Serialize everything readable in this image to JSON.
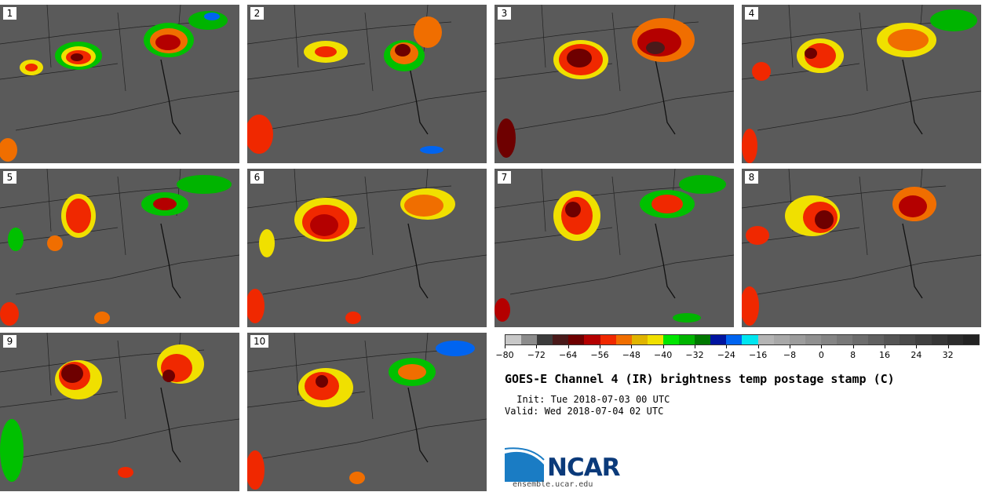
{
  "panels": [
    {
      "label": "1"
    },
    {
      "label": "2"
    },
    {
      "label": "3"
    },
    {
      "label": "4"
    },
    {
      "label": "5"
    },
    {
      "label": "6"
    },
    {
      "label": "7"
    },
    {
      "label": "8"
    },
    {
      "label": "9"
    },
    {
      "label": "10"
    }
  ],
  "colorbar": {
    "colors": [
      "#c8c8c8",
      "#8c8c8c",
      "#3c3c3c",
      "#4a1a1a",
      "#6e0000",
      "#b40000",
      "#f02800",
      "#f06e00",
      "#e0b400",
      "#f0e000",
      "#00e600",
      "#00b400",
      "#007800",
      "#0014a0",
      "#0064f0",
      "#00e6f0",
      "#b4b4b4",
      "#a8a8a8",
      "#9c9c9c",
      "#909090",
      "#848484",
      "#787878",
      "#6c6c6c",
      "#606060",
      "#545454",
      "#4a4a4a",
      "#404040",
      "#363636",
      "#2c2c2c",
      "#232323"
    ],
    "tick_labels": [
      "−80",
      "−72",
      "−64",
      "−56",
      "−48",
      "−40",
      "−32",
      "−24",
      "−16",
      "−8",
      "0",
      "8",
      "16",
      "24",
      "32"
    ],
    "min": -80,
    "max": 40,
    "tick_values": [
      -80,
      -72,
      -64,
      -56,
      -48,
      -40,
      -32,
      -24,
      -16,
      -8,
      0,
      8,
      16,
      24,
      32
    ]
  },
  "title": "GOES-E Channel 4 (IR) brightness temp postage stamp (C)",
  "init": " Init: Tue 2018-07-03 00 UTC",
  "valid": "Valid: Wed 2018-07-04 02 UTC",
  "logo": {
    "text": "NCAR",
    "url": "ensemble.ucar.edu"
  }
}
